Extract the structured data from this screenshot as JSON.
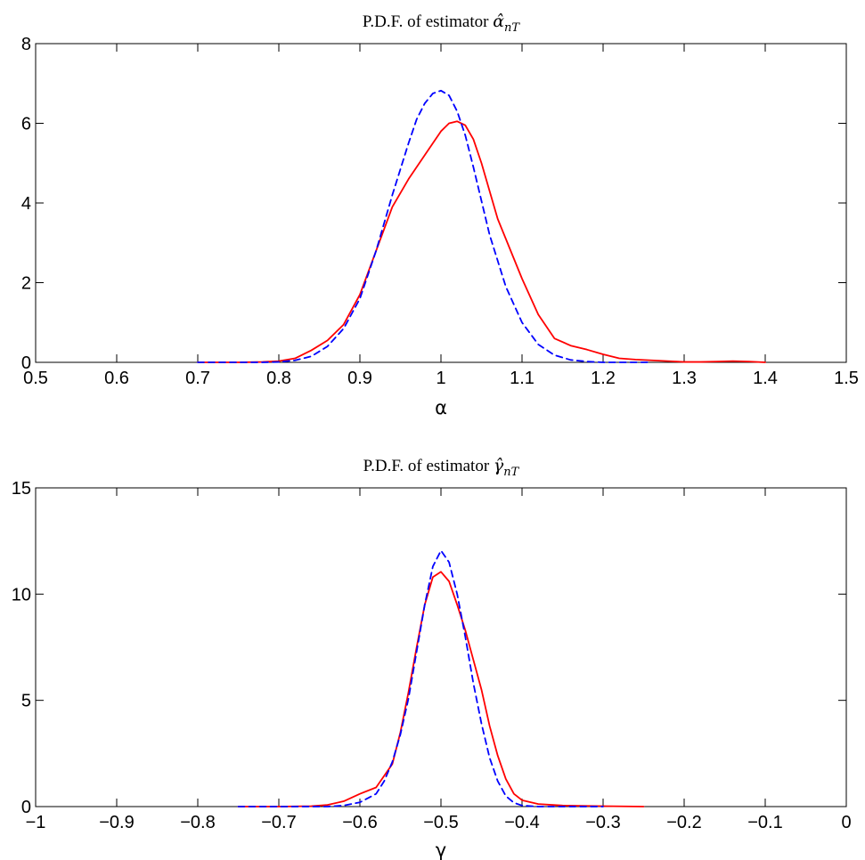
{
  "chart_data": [
    {
      "type": "line",
      "title_prefix": "P.D.F. of estimator ",
      "title_symbol": "α̂",
      "title_subscript": "nT",
      "xlabel": "α",
      "ylabel": "",
      "xlim": [
        0.5,
        1.5
      ],
      "ylim": [
        0,
        8
      ],
      "xticks": [
        "0.5",
        "0.6",
        "0.7",
        "0.8",
        "0.9",
        "1",
        "1.1",
        "1.2",
        "1.3",
        "1.4",
        "1.5"
      ],
      "yticks": [
        "0",
        "2",
        "4",
        "6",
        "8"
      ],
      "grid": false,
      "series": [
        {
          "color": "#ff0000",
          "style": "solid",
          "x": [
            0.7,
            0.75,
            0.78,
            0.8,
            0.82,
            0.84,
            0.86,
            0.88,
            0.9,
            0.92,
            0.94,
            0.96,
            0.98,
            1.0,
            1.01,
            1.02,
            1.03,
            1.04,
            1.05,
            1.06,
            1.07,
            1.08,
            1.09,
            1.1,
            1.12,
            1.14,
            1.16,
            1.18,
            1.2,
            1.22,
            1.24,
            1.26,
            1.28,
            1.3,
            1.32,
            1.34,
            1.36,
            1.38,
            1.4
          ],
          "y": [
            0.0,
            0.0,
            0.01,
            0.03,
            0.1,
            0.3,
            0.55,
            0.95,
            1.7,
            2.8,
            3.9,
            4.6,
            5.2,
            5.8,
            6.0,
            6.05,
            5.95,
            5.6,
            5.0,
            4.3,
            3.6,
            3.1,
            2.6,
            2.1,
            1.2,
            0.6,
            0.42,
            0.32,
            0.2,
            0.1,
            0.07,
            0.05,
            0.03,
            0.01,
            0.01,
            0.02,
            0.03,
            0.02,
            0.0
          ]
        },
        {
          "color": "#0000ff",
          "style": "dashed",
          "x": [
            0.7,
            0.75,
            0.78,
            0.8,
            0.82,
            0.84,
            0.86,
            0.88,
            0.9,
            0.92,
            0.94,
            0.96,
            0.97,
            0.98,
            0.99,
            1.0,
            1.01,
            1.02,
            1.03,
            1.04,
            1.05,
            1.06,
            1.08,
            1.1,
            1.12,
            1.14,
            1.16,
            1.18,
            1.2,
            1.22,
            1.24,
            1.26
          ],
          "y": [
            0.0,
            0.0,
            0.0,
            0.01,
            0.05,
            0.15,
            0.4,
            0.85,
            1.6,
            2.8,
            4.2,
            5.5,
            6.1,
            6.5,
            6.75,
            6.82,
            6.7,
            6.3,
            5.7,
            4.9,
            4.05,
            3.2,
            1.9,
            1.0,
            0.45,
            0.18,
            0.06,
            0.02,
            0.0,
            0.0,
            0.0,
            0.0
          ]
        }
      ]
    },
    {
      "type": "line",
      "title_prefix": "P.D.F. of estimator ",
      "title_symbol": "γ̂",
      "title_subscript": "nT",
      "xlabel": "γ",
      "ylabel": "",
      "xlim": [
        -1,
        0
      ],
      "ylim": [
        0,
        15
      ],
      "xticks": [
        "−1",
        "−0.9",
        "−0.8",
        "−0.7",
        "−0.6",
        "−0.5",
        "−0.4",
        "−0.3",
        "−0.2",
        "−0.1",
        "0"
      ],
      "yticks": [
        "0",
        "5",
        "10",
        "15"
      ],
      "grid": false,
      "series": [
        {
          "color": "#ff0000",
          "style": "solid",
          "x": [
            -0.75,
            -0.7,
            -0.66,
            -0.64,
            -0.62,
            -0.6,
            -0.58,
            -0.56,
            -0.55,
            -0.54,
            -0.53,
            -0.52,
            -0.51,
            -0.5,
            -0.49,
            -0.48,
            -0.47,
            -0.46,
            -0.45,
            -0.44,
            -0.43,
            -0.42,
            -0.41,
            -0.4,
            -0.38,
            -0.35,
            -0.3,
            -0.25
          ],
          "y": [
            0.0,
            0.0,
            0.02,
            0.08,
            0.25,
            0.6,
            0.9,
            2.0,
            3.5,
            5.4,
            7.5,
            9.5,
            10.8,
            11.05,
            10.6,
            9.5,
            8.3,
            6.9,
            5.5,
            3.8,
            2.4,
            1.3,
            0.6,
            0.3,
            0.12,
            0.05,
            0.02,
            0.0
          ]
        },
        {
          "color": "#0000ff",
          "style": "dashed",
          "x": [
            -0.75,
            -0.7,
            -0.66,
            -0.64,
            -0.62,
            -0.6,
            -0.58,
            -0.57,
            -0.56,
            -0.55,
            -0.54,
            -0.53,
            -0.52,
            -0.51,
            -0.5,
            -0.49,
            -0.48,
            -0.47,
            -0.46,
            -0.45,
            -0.44,
            -0.43,
            -0.42,
            -0.41,
            -0.4,
            -0.38,
            -0.35,
            -0.3
          ],
          "y": [
            0.0,
            0.0,
            0.0,
            0.0,
            0.05,
            0.2,
            0.6,
            1.2,
            2.1,
            3.4,
            5.1,
            7.3,
            9.5,
            11.3,
            12.05,
            11.5,
            10.0,
            8.0,
            5.8,
            3.9,
            2.3,
            1.2,
            0.5,
            0.18,
            0.05,
            0.0,
            0.0,
            0.0
          ]
        }
      ]
    }
  ]
}
